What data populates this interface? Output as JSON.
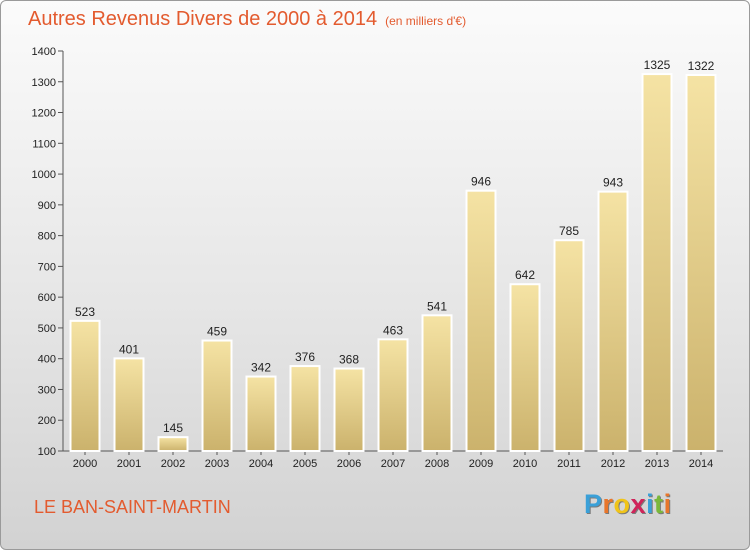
{
  "header": {
    "title": "Autres Revenus Divers de 2000 à 2014",
    "subtitle": "(en milliers d'€)"
  },
  "footer": {
    "commune": "LE BAN-SAINT-MARTIN",
    "logo": {
      "letters": [
        "P",
        "r",
        "o",
        "x",
        "i",
        "t",
        "i"
      ],
      "colors": [
        "#3aa0d8",
        "#e8762b",
        "#f0c419",
        "#d0245a",
        "#3aa0d8",
        "#7ab83a",
        "#e8762b"
      ]
    }
  },
  "colors": {
    "bar_light": "#f5e3a4",
    "bar_dark": "#cbb26c",
    "text": "#e35b2f"
  },
  "chart_data": {
    "type": "bar",
    "title": "Autres Revenus Divers de 2000 à 2014",
    "subtitle": "(en milliers d'€)",
    "categories": [
      "2000",
      "2001",
      "2002",
      "2003",
      "2004",
      "2005",
      "2006",
      "2007",
      "2008",
      "2009",
      "2010",
      "2011",
      "2012",
      "2013",
      "2014"
    ],
    "values": [
      523,
      401,
      145,
      459,
      342,
      376,
      368,
      463,
      541,
      946,
      642,
      785,
      943,
      1325,
      1322
    ],
    "ylim": [
      100,
      1400
    ],
    "yticks": [
      100,
      200,
      300,
      400,
      500,
      600,
      700,
      800,
      900,
      1000,
      1100,
      1200,
      1300,
      1400
    ],
    "grid": false
  }
}
